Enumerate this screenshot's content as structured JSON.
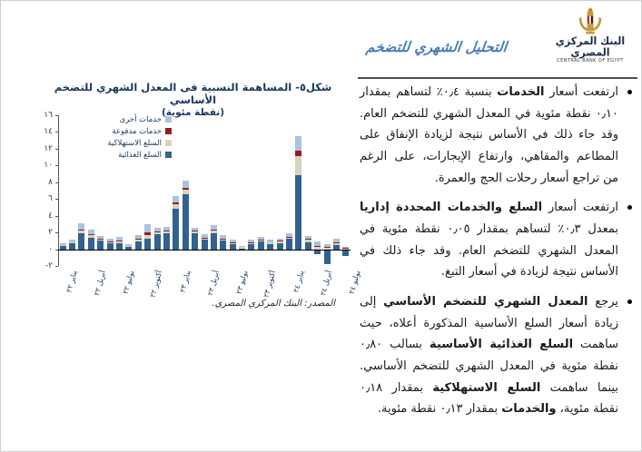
{
  "header": {
    "title": "التحليل الشهري للتضخم",
    "bank_name_arabic": "البنك المركزي المصري",
    "bank_name_english": "CENTRAL BANK OF EGYPT"
  },
  "chart_data": {
    "type": "bar",
    "stacked": true,
    "title": "شكل٥- المساهمة النسبية فى المعدل الشهري للتضخم الأساسي",
    "subtitle": "(نقطة مئوية)",
    "source": "المصدر: البنك المركزي المصري.",
    "ylabel": "",
    "xlabel": "",
    "ylim": [
      -2,
      16
    ],
    "ystep": 2,
    "grid": false,
    "legend_position": "top-left-inside",
    "ytick_values": [
      16,
      14,
      12,
      10,
      8,
      6,
      4,
      2,
      0,
      -2
    ],
    "ytick_labels": [
      "١٦",
      "١٤",
      "١٢",
      "١٠",
      "٨",
      "٦",
      "٤",
      "٢",
      "٠",
      "-٢"
    ],
    "x_labels": [
      "يناير ٢٢",
      "",
      "",
      "أبريل ٢٢",
      "",
      "",
      "يوليو ٢٢",
      "",
      "",
      "أكتوبر ٢٢",
      "",
      "",
      "يناير ٢٣",
      "",
      "",
      "أبريل ٢٣",
      "",
      "",
      "يوليو ٢٣",
      "",
      "",
      "أكتوبر ٢٣",
      "",
      "",
      "يناير ٢٤",
      "",
      "",
      "أبريل ٢٤",
      "",
      "",
      "يوليو ٢٤"
    ],
    "legend_order": [
      "خدمات أخرى",
      "خدمات مدفوعة",
      "السلع الاستهلاكية",
      "السلع الغذائية"
    ],
    "series": [
      {
        "name": "السلع الغذائية",
        "color": "#31628F",
        "values": [
          0.4,
          0.8,
          1.9,
          1.4,
          1.0,
          0.7,
          0.7,
          0.3,
          0.9,
          1.3,
          1.8,
          1.9,
          4.8,
          6.6,
          1.9,
          1.1,
          1.9,
          1.0,
          0.6,
          0.1,
          0.6,
          0.9,
          0.6,
          0.7,
          1.2,
          8.8,
          0.8,
          -0.6,
          -1.8,
          0.45,
          -0.8
        ]
      },
      {
        "name": "السلع الاستهلاكية",
        "color": "#D8D4B9",
        "values": [
          0.05,
          0.05,
          0.3,
          0.25,
          0.15,
          0.2,
          0.3,
          0.1,
          0.2,
          0.35,
          0.25,
          0.3,
          0.55,
          0.5,
          0.25,
          0.25,
          0.3,
          0.25,
          0.2,
          0.15,
          0.15,
          0.2,
          0.2,
          0.25,
          0.25,
          2.3,
          0.3,
          0.3,
          0.2,
          0.35,
          0.18
        ]
      },
      {
        "name": "خدمات مدفوعة",
        "color": "#9A1B1E",
        "values": [
          0.0,
          0.0,
          0.15,
          0.1,
          0.05,
          0.05,
          0.05,
          0.0,
          0.15,
          0.4,
          0.1,
          0.05,
          0.25,
          0.2,
          0.1,
          0.05,
          0.15,
          0.05,
          0.05,
          0.0,
          0.05,
          0.05,
          0.0,
          0.05,
          0.05,
          0.7,
          0.1,
          0.05,
          0.03,
          0.05,
          0.03
        ]
      },
      {
        "name": "خدمات أخرى",
        "color": "#A9C4E0",
        "values": [
          0.25,
          0.25,
          0.75,
          0.55,
          0.35,
          0.35,
          0.45,
          0.2,
          0.45,
          0.9,
          0.45,
          0.4,
          0.7,
          0.85,
          0.35,
          0.35,
          0.5,
          0.4,
          0.3,
          0.15,
          0.3,
          0.35,
          0.3,
          0.3,
          0.4,
          1.7,
          0.4,
          0.55,
          0.4,
          0.45,
          0.1
        ]
      }
    ]
  },
  "bullets": [
    {
      "runs": [
        {
          "t": "ارتفعت أسعار ",
          "b": false
        },
        {
          "t": "الخدمات",
          "b": true
        },
        {
          "t": " بنسبة ٠٫٤٪ لتساهم بمقدار ٠٫١٠ نقطة مئوية في المعدل الشهري للتضخم العام. وقد جاء ذلك في الأساس نتيجة لزيادة الإنفاق على المطاعم والمقاهي، وارتفاع الإيجارات، على الرغم من تراجع أسعار رحلات الحج والعمرة.",
          "b": false
        }
      ]
    },
    {
      "runs": [
        {
          "t": "ارتفعت أسعار ",
          "b": false
        },
        {
          "t": "السلع والخدمات المحددة إداريا",
          "b": true
        },
        {
          "t": " بمعدل ٠٫٣٪ لتساهم بمقدار ٠٫٠٥ نقطة مئوية في المعدل الشهري للتضخم العام. وقد جاء ذلك في الأساس نتيجة لزيادة في أسعار التبغ.",
          "b": false
        }
      ]
    },
    {
      "runs": [
        {
          "t": "يرجع ",
          "b": false
        },
        {
          "t": "المعدل الشهري للتضخم الأساسي",
          "b": true
        },
        {
          "t": " إلى زيادة أسعار السلع الأساسية المذكورة أعلاه، حيث ساهمت ",
          "b": false
        },
        {
          "t": "السلع الغذائية الأساسية",
          "b": true
        },
        {
          "t": " بسالب ٠٫٨٠ نقطة مئوية في المعدل الشهري للتضخم الأساسي. بينما ساهمت ",
          "b": false
        },
        {
          "t": "السلع الاستهلاكية",
          "b": true
        },
        {
          "t": " بمقدار ٠٫١٨ نقطة مئوية، ",
          "b": false
        },
        {
          "t": "والخدمات",
          "b": true
        },
        {
          "t": " بمقدار ٠٫١٣ نقطة مئوية.",
          "b": false
        }
      ]
    }
  ]
}
